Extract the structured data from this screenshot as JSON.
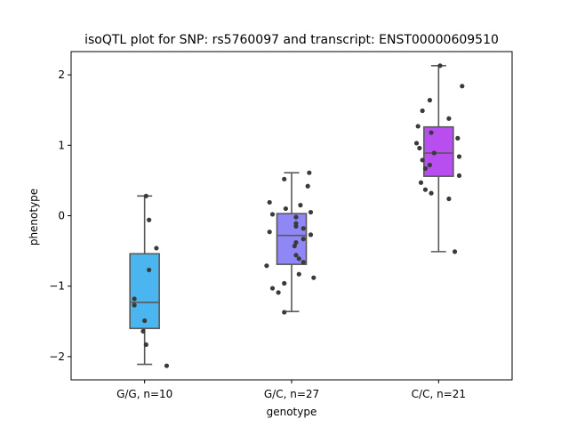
{
  "chart_data": {
    "type": "box",
    "title": "isoQTL plot for SNP: rs5760097 and transcript: ENST00000609510",
    "xlabel": "genotype",
    "ylabel": "phenotype",
    "ylim": [
      -2.33,
      2.33
    ],
    "yticks": [
      -2,
      -1,
      0,
      1,
      2
    ],
    "grid": false,
    "categories": [
      "G/G, n=10",
      "G/C, n=27",
      "C/C, n=21"
    ],
    "colors": [
      "#4bb5f0",
      "#8f87f5",
      "#b94ef0"
    ],
    "point_color": "#3a3a3a",
    "groups": [
      {
        "category": "G/G, n=10",
        "whisker_low": -2.11,
        "q1": -1.6,
        "median": -1.23,
        "q3": -0.54,
        "whisker_high": 0.28,
        "points": [
          {
            "x": 0.01,
            "y": 0.28
          },
          {
            "x": 0.03,
            "y": -0.06
          },
          {
            "x": 0.08,
            "y": -0.46
          },
          {
            "x": 0.03,
            "y": -0.77
          },
          {
            "x": -0.07,
            "y": -1.18
          },
          {
            "x": -0.07,
            "y": -1.27
          },
          {
            "x": 0.0,
            "y": -1.49
          },
          {
            "x": -0.01,
            "y": -1.64
          },
          {
            "x": 0.01,
            "y": -1.83
          },
          {
            "x": 0.15,
            "y": -2.13
          }
        ]
      },
      {
        "category": "G/C, n=27",
        "whisker_low": -1.36,
        "q1": -0.69,
        "median": -0.28,
        "q3": 0.03,
        "whisker_high": 0.61,
        "points": [
          {
            "x": 0.12,
            "y": 0.61
          },
          {
            "x": -0.05,
            "y": 0.52
          },
          {
            "x": 0.11,
            "y": 0.42
          },
          {
            "x": -0.15,
            "y": 0.19
          },
          {
            "x": 0.06,
            "y": 0.15
          },
          {
            "x": -0.04,
            "y": 0.1
          },
          {
            "x": 0.13,
            "y": 0.05
          },
          {
            "x": -0.13,
            "y": 0.02
          },
          {
            "x": 0.03,
            "y": -0.02
          },
          {
            "x": 0.03,
            "y": -0.11
          },
          {
            "x": 0.03,
            "y": -0.15
          },
          {
            "x": 0.08,
            "y": -0.18
          },
          {
            "x": -0.15,
            "y": -0.23
          },
          {
            "x": 0.13,
            "y": -0.27
          },
          {
            "x": 0.08,
            "y": -0.33
          },
          {
            "x": 0.03,
            "y": -0.38
          },
          {
            "x": 0.02,
            "y": -0.43
          },
          {
            "x": 0.03,
            "y": -0.56
          },
          {
            "x": 0.05,
            "y": -0.61
          },
          {
            "x": 0.08,
            "y": -0.66
          },
          {
            "x": -0.17,
            "y": -0.71
          },
          {
            "x": 0.05,
            "y": -0.83
          },
          {
            "x": 0.15,
            "y": -0.88
          },
          {
            "x": -0.05,
            "y": -0.96
          },
          {
            "x": -0.13,
            "y": -1.03
          },
          {
            "x": -0.09,
            "y": -1.09
          },
          {
            "x": -0.05,
            "y": -1.37
          }
        ]
      },
      {
        "category": "C/C, n=21",
        "whisker_low": -0.51,
        "q1": 0.56,
        "median": 0.89,
        "q3": 1.26,
        "whisker_high": 2.13,
        "points": [
          {
            "x": 0.01,
            "y": 2.13
          },
          {
            "x": 0.16,
            "y": 1.84
          },
          {
            "x": -0.06,
            "y": 1.64
          },
          {
            "x": -0.11,
            "y": 1.49
          },
          {
            "x": 0.07,
            "y": 1.38
          },
          {
            "x": -0.14,
            "y": 1.27
          },
          {
            "x": -0.05,
            "y": 1.18
          },
          {
            "x": 0.13,
            "y": 1.1
          },
          {
            "x": -0.15,
            "y": 1.03
          },
          {
            "x": -0.13,
            "y": 0.96
          },
          {
            "x": -0.03,
            "y": 0.89
          },
          {
            "x": 0.14,
            "y": 0.84
          },
          {
            "x": -0.11,
            "y": 0.79
          },
          {
            "x": -0.06,
            "y": 0.72
          },
          {
            "x": -0.09,
            "y": 0.67
          },
          {
            "x": 0.14,
            "y": 0.57
          },
          {
            "x": -0.12,
            "y": 0.47
          },
          {
            "x": -0.09,
            "y": 0.37
          },
          {
            "x": -0.05,
            "y": 0.32
          },
          {
            "x": 0.07,
            "y": 0.24
          },
          {
            "x": 0.11,
            "y": -0.51
          }
        ]
      }
    ]
  }
}
